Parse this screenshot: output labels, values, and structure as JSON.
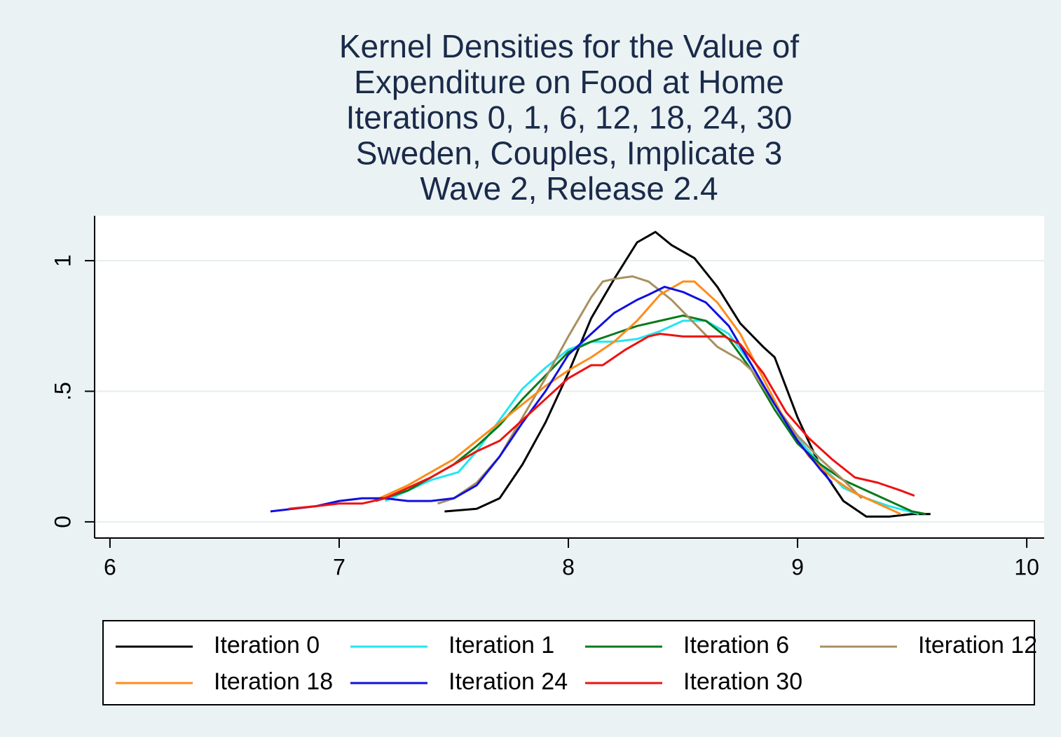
{
  "chart_data": {
    "type": "line",
    "title": [
      "Kernel Densities for the Value of",
      "Expenditure on Food at Home",
      "Iterations 0, 1, 6, 12, 18, 24, 30",
      "Sweden,  Couples, Implicate 3",
      "Wave 2, Release 2.4"
    ],
    "xlim": [
      5.933,
      10.076
    ],
    "xticks": [
      6,
      7,
      8,
      9,
      10
    ],
    "ylim": [
      -0.062,
      1.172
    ],
    "yticks": [
      0,
      {
        "value": 0.5,
        "label": ".5"
      },
      1
    ],
    "grid": true,
    "legend": "bottom",
    "series": [
      {
        "name": "Iteration 0",
        "color": "#000000",
        "x": [
          7.46,
          7.6,
          7.7,
          7.8,
          7.9,
          8.0,
          8.1,
          8.2,
          8.3,
          8.38,
          8.45,
          8.55,
          8.65,
          8.75,
          8.85,
          8.9,
          9.0,
          9.1,
          9.2,
          9.3,
          9.4,
          9.5,
          9.58
        ],
        "values": [
          0.04,
          0.05,
          0.09,
          0.22,
          0.38,
          0.57,
          0.78,
          0.93,
          1.07,
          1.11,
          1.06,
          1.01,
          0.9,
          0.76,
          0.67,
          0.63,
          0.4,
          0.21,
          0.08,
          0.02,
          0.02,
          0.03,
          0.03
        ]
      },
      {
        "name": "Iteration 1",
        "color": "#22e6f0",
        "x": [
          7.2,
          7.3,
          7.4,
          7.52,
          7.6,
          7.7,
          7.8,
          7.9,
          8.0,
          8.1,
          8.2,
          8.3,
          8.4,
          8.5,
          8.6,
          8.7,
          8.8,
          8.9,
          9.0,
          9.1,
          9.2,
          9.3,
          9.4,
          9.53
        ],
        "values": [
          0.08,
          0.12,
          0.16,
          0.19,
          0.27,
          0.39,
          0.51,
          0.59,
          0.66,
          0.69,
          0.69,
          0.7,
          0.73,
          0.77,
          0.77,
          0.72,
          0.6,
          0.45,
          0.32,
          0.22,
          0.13,
          0.09,
          0.06,
          0.03
        ]
      },
      {
        "name": "Iteration 6",
        "color": "#0a7a1a",
        "x": [
          7.16,
          7.3,
          7.4,
          7.5,
          7.6,
          7.7,
          7.8,
          7.9,
          8.0,
          8.1,
          8.2,
          8.3,
          8.4,
          8.5,
          8.6,
          8.7,
          8.8,
          8.9,
          9.0,
          9.1,
          9.2,
          9.3,
          9.4,
          9.5,
          9.56
        ],
        "values": [
          0.08,
          0.12,
          0.17,
          0.22,
          0.29,
          0.37,
          0.47,
          0.56,
          0.65,
          0.69,
          0.72,
          0.75,
          0.77,
          0.79,
          0.77,
          0.7,
          0.58,
          0.43,
          0.3,
          0.22,
          0.16,
          0.12,
          0.08,
          0.04,
          0.03
        ]
      },
      {
        "name": "Iteration 12",
        "color": "#a89060",
        "x": [
          7.43,
          7.5,
          7.6,
          7.7,
          7.8,
          7.9,
          8.0,
          8.1,
          8.15,
          8.2,
          8.28,
          8.35,
          8.45,
          8.55,
          8.65,
          8.75,
          8.8,
          8.9,
          9.0,
          9.1,
          9.2,
          9.28
        ],
        "values": [
          0.07,
          0.09,
          0.15,
          0.25,
          0.4,
          0.55,
          0.71,
          0.86,
          0.92,
          0.93,
          0.94,
          0.92,
          0.85,
          0.76,
          0.67,
          0.62,
          0.58,
          0.45,
          0.33,
          0.24,
          0.16,
          0.09
        ]
      },
      {
        "name": "Iteration 18",
        "color": "#ff8c1a",
        "x": [
          7.15,
          7.3,
          7.4,
          7.5,
          7.6,
          7.7,
          7.8,
          7.9,
          8.0,
          8.1,
          8.2,
          8.3,
          8.4,
          8.5,
          8.55,
          8.65,
          8.75,
          8.85,
          8.95,
          9.05,
          9.15,
          9.25,
          9.35,
          9.45
        ],
        "values": [
          0.08,
          0.14,
          0.19,
          0.24,
          0.31,
          0.38,
          0.45,
          0.52,
          0.58,
          0.63,
          0.69,
          0.77,
          0.87,
          0.92,
          0.92,
          0.84,
          0.72,
          0.55,
          0.38,
          0.25,
          0.17,
          0.11,
          0.07,
          0.03
        ]
      },
      {
        "name": "Iteration 24",
        "color": "#1010e0",
        "x": [
          6.7,
          6.8,
          6.9,
          7.0,
          7.1,
          7.2,
          7.3,
          7.4,
          7.5,
          7.6,
          7.7,
          7.8,
          7.9,
          8.0,
          8.1,
          8.2,
          8.3,
          8.35,
          8.42,
          8.5,
          8.6,
          8.7,
          8.8,
          8.9,
          9.0,
          9.1,
          9.15
        ],
        "values": [
          0.04,
          0.05,
          0.06,
          0.08,
          0.09,
          0.09,
          0.08,
          0.08,
          0.09,
          0.14,
          0.25,
          0.38,
          0.5,
          0.64,
          0.72,
          0.8,
          0.85,
          0.87,
          0.9,
          0.88,
          0.84,
          0.75,
          0.6,
          0.45,
          0.31,
          0.2,
          0.15
        ]
      },
      {
        "name": "Iteration 30",
        "color": "#ee1111",
        "x": [
          6.78,
          6.9,
          7.0,
          7.1,
          7.2,
          7.3,
          7.4,
          7.5,
          7.6,
          7.7,
          7.8,
          7.9,
          8.0,
          8.1,
          8.15,
          8.25,
          8.35,
          8.4,
          8.5,
          8.6,
          8.68,
          8.75,
          8.85,
          8.95,
          9.05,
          9.15,
          9.25,
          9.35,
          9.45,
          9.51
        ],
        "values": [
          0.05,
          0.06,
          0.07,
          0.07,
          0.09,
          0.13,
          0.17,
          0.22,
          0.27,
          0.31,
          0.39,
          0.47,
          0.55,
          0.6,
          0.6,
          0.66,
          0.71,
          0.72,
          0.71,
          0.71,
          0.71,
          0.68,
          0.57,
          0.42,
          0.32,
          0.24,
          0.17,
          0.15,
          0.12,
          0.1
        ]
      }
    ]
  }
}
